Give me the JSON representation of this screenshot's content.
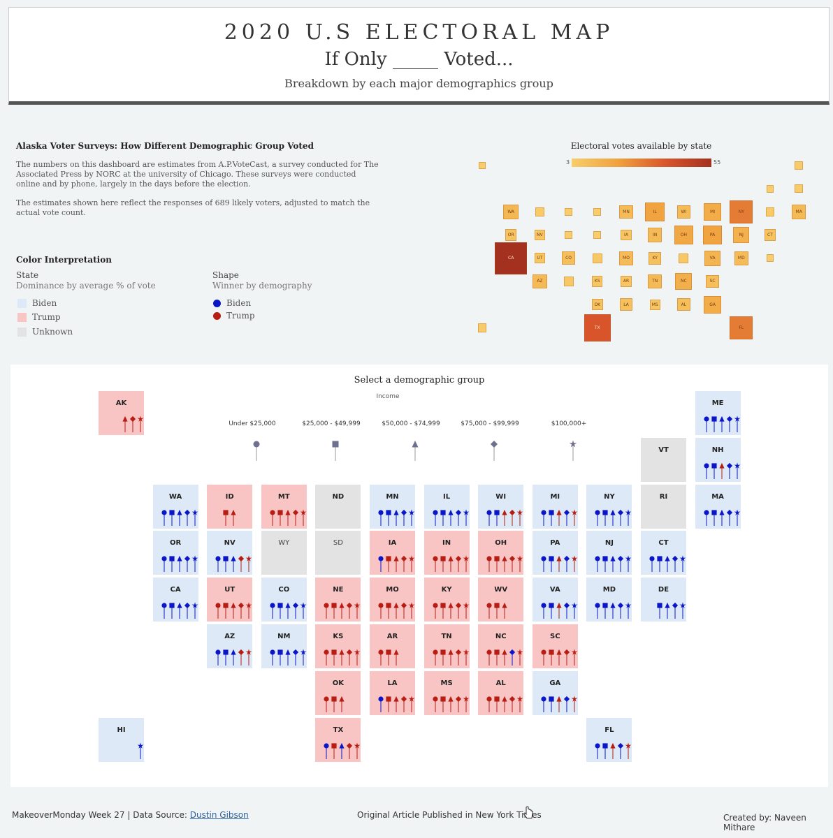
{
  "header": {
    "title": "2020   U.S   ELECTORAL   MAP",
    "subtitle": "If Only _____ Voted...",
    "tagline": "Breakdown by each major demographics group"
  },
  "survey": {
    "title": "Alaska Voter Surveys: How Different Demographic Group Voted",
    "p1": "The numbers on this dashboard are estimates from A.P.VoteCast, a survey conducted for The Associated Press by NORC at the university of Chicago. These surveys were conducted online and by phone, largely in the days before the election.",
    "p2": "The estimates shown here reflect the responses of 689 likely voters, adjusted to match the actual vote count."
  },
  "legend": {
    "title": "Color Interpretation",
    "state_head": "State",
    "state_sub": "Dominance by average % of vote",
    "state_items": [
      {
        "label": "Biden",
        "color": "#dde9f7"
      },
      {
        "label": "Trump",
        "color": "#f9c4c4"
      },
      {
        "label": "Unknown",
        "color": "#e3e3e3"
      }
    ],
    "shape_head": "Shape",
    "shape_sub": "Winner by demography",
    "shape_items": [
      {
        "label": "Biden",
        "color": "#0b16c8"
      },
      {
        "label": "Trump",
        "color": "#b81d13"
      }
    ]
  },
  "ev_map": {
    "title": "Electoral votes available by state",
    "min_label": "3",
    "max_label": "55",
    "states": [
      {
        "st": "AK",
        "ev": 3
      },
      {
        "st": "ME",
        "ev": 4
      },
      {
        "st": "VT",
        "ev": 3
      },
      {
        "st": "NH",
        "ev": 4
      },
      {
        "st": "WA",
        "ev": 12
      },
      {
        "st": "ID",
        "ev": 4
      },
      {
        "st": "MT",
        "ev": 3
      },
      {
        "st": "ND",
        "ev": 3
      },
      {
        "st": "MN",
        "ev": 10
      },
      {
        "st": "IL",
        "ev": 20
      },
      {
        "st": "WI",
        "ev": 10
      },
      {
        "st": "MI",
        "ev": 16
      },
      {
        "st": "NY",
        "ev": 29
      },
      {
        "st": "RI",
        "ev": 4
      },
      {
        "st": "MA",
        "ev": 11
      },
      {
        "st": "OR",
        "ev": 7
      },
      {
        "st": "NV",
        "ev": 6
      },
      {
        "st": "WY",
        "ev": 3
      },
      {
        "st": "SD",
        "ev": 3
      },
      {
        "st": "IA",
        "ev": 6
      },
      {
        "st": "IN",
        "ev": 11
      },
      {
        "st": "OH",
        "ev": 18
      },
      {
        "st": "PA",
        "ev": 20
      },
      {
        "st": "NJ",
        "ev": 14
      },
      {
        "st": "CT",
        "ev": 7
      },
      {
        "st": "CA",
        "ev": 55
      },
      {
        "st": "UT",
        "ev": 6
      },
      {
        "st": "CO",
        "ev": 9
      },
      {
        "st": "NE",
        "ev": 5
      },
      {
        "st": "MO",
        "ev": 10
      },
      {
        "st": "KY",
        "ev": 8
      },
      {
        "st": "WV",
        "ev": 5
      },
      {
        "st": "VA",
        "ev": 13
      },
      {
        "st": "MD",
        "ev": 10
      },
      {
        "st": "DE",
        "ev": 3
      },
      {
        "st": "AZ",
        "ev": 11
      },
      {
        "st": "NM",
        "ev": 5
      },
      {
        "st": "KS",
        "ev": 6
      },
      {
        "st": "AR",
        "ev": 6
      },
      {
        "st": "TN",
        "ev": 11
      },
      {
        "st": "NC",
        "ev": 15
      },
      {
        "st": "SC",
        "ev": 9
      },
      {
        "st": "OK",
        "ev": 7
      },
      {
        "st": "LA",
        "ev": 8
      },
      {
        "st": "MS",
        "ev": 6
      },
      {
        "st": "AL",
        "ev": 9
      },
      {
        "st": "GA",
        "ev": 16
      },
      {
        "st": "HI",
        "ev": 4
      },
      {
        "st": "TX",
        "ev": 38
      },
      {
        "st": "FL",
        "ev": 29
      }
    ]
  },
  "main": {
    "select_title": "Select a demographic group",
    "group_label": "Income",
    "income_categories": [
      "Under $25,000",
      "$25,000 - $49,999",
      "$50,000 - $74,999",
      "$75,000 - $99,999",
      "$100,000+"
    ],
    "income_shapes": [
      "circle",
      "square",
      "triangle",
      "diamond",
      "star"
    ],
    "states": [
      {
        "st": "AK",
        "dom": "trump",
        "w": [
          "",
          "",
          "R",
          "R",
          "R"
        ]
      },
      {
        "st": "ME",
        "dom": "biden",
        "w": [
          "B",
          "B",
          "B",
          "B",
          "B"
        ]
      },
      {
        "st": "VT",
        "dom": "unknown",
        "w": [
          "",
          "",
          "",
          "",
          ""
        ]
      },
      {
        "st": "NH",
        "dom": "biden",
        "w": [
          "B",
          "B",
          "R",
          "B",
          "B"
        ]
      },
      {
        "st": "WA",
        "dom": "biden",
        "w": [
          "B",
          "B",
          "B",
          "B",
          "B"
        ]
      },
      {
        "st": "ID",
        "dom": "trump",
        "w": [
          "",
          "R",
          "R",
          "",
          ""
        ]
      },
      {
        "st": "MT",
        "dom": "trump",
        "w": [
          "R",
          "R",
          "R",
          "R",
          "R"
        ]
      },
      {
        "st": "ND",
        "dom": "unknown",
        "w": [
          "",
          "",
          "",
          "",
          ""
        ]
      },
      {
        "st": "MN",
        "dom": "biden",
        "w": [
          "B",
          "B",
          "B",
          "B",
          "B"
        ]
      },
      {
        "st": "IL",
        "dom": "biden",
        "w": [
          "B",
          "B",
          "B",
          "B",
          "B"
        ]
      },
      {
        "st": "WI",
        "dom": "biden",
        "w": [
          "B",
          "B",
          "R",
          "R",
          "R"
        ]
      },
      {
        "st": "MI",
        "dom": "biden",
        "w": [
          "B",
          "B",
          "R",
          "B",
          "R"
        ]
      },
      {
        "st": "NY",
        "dom": "biden",
        "w": [
          "B",
          "B",
          "B",
          "B",
          "B"
        ]
      },
      {
        "st": "RI",
        "dom": "unknown",
        "w": [
          "",
          "",
          "",
          "",
          ""
        ]
      },
      {
        "st": "MA",
        "dom": "biden",
        "w": [
          "B",
          "B",
          "B",
          "B",
          "B"
        ]
      },
      {
        "st": "OR",
        "dom": "biden",
        "w": [
          "B",
          "B",
          "B",
          "B",
          "B"
        ]
      },
      {
        "st": "NV",
        "dom": "biden",
        "w": [
          "B",
          "B",
          "B",
          "R",
          "R"
        ]
      },
      {
        "st": "WY",
        "dom": "unknown",
        "w": [
          "",
          "",
          "",
          "",
          ""
        ]
      },
      {
        "st": "SD",
        "dom": "unknown",
        "w": [
          "",
          "",
          "",
          "",
          ""
        ]
      },
      {
        "st": "IA",
        "dom": "trump",
        "w": [
          "B",
          "R",
          "R",
          "R",
          "R"
        ]
      },
      {
        "st": "IN",
        "dom": "trump",
        "w": [
          "R",
          "R",
          "R",
          "R",
          "R"
        ]
      },
      {
        "st": "OH",
        "dom": "trump",
        "w": [
          "R",
          "R",
          "R",
          "R",
          "R"
        ]
      },
      {
        "st": "PA",
        "dom": "biden",
        "w": [
          "B",
          "B",
          "R",
          "B",
          "R"
        ]
      },
      {
        "st": "NJ",
        "dom": "biden",
        "w": [
          "B",
          "B",
          "B",
          "B",
          "B"
        ]
      },
      {
        "st": "CT",
        "dom": "biden",
        "w": [
          "B",
          "B",
          "B",
          "B",
          "B"
        ]
      },
      {
        "st": "CA",
        "dom": "biden",
        "w": [
          "B",
          "B",
          "B",
          "B",
          "B"
        ]
      },
      {
        "st": "UT",
        "dom": "trump",
        "w": [
          "R",
          "R",
          "R",
          "R",
          "R"
        ]
      },
      {
        "st": "CO",
        "dom": "biden",
        "w": [
          "B",
          "B",
          "B",
          "B",
          "B"
        ]
      },
      {
        "st": "NE",
        "dom": "trump",
        "w": [
          "R",
          "R",
          "R",
          "R",
          "R"
        ]
      },
      {
        "st": "MO",
        "dom": "trump",
        "w": [
          "R",
          "R",
          "R",
          "R",
          "R"
        ]
      },
      {
        "st": "KY",
        "dom": "trump",
        "w": [
          "R",
          "R",
          "R",
          "R",
          "R"
        ]
      },
      {
        "st": "WV",
        "dom": "trump",
        "w": [
          "R",
          "R",
          "R",
          "",
          ""
        ]
      },
      {
        "st": "VA",
        "dom": "biden",
        "w": [
          "B",
          "B",
          "R",
          "B",
          "B"
        ]
      },
      {
        "st": "MD",
        "dom": "biden",
        "w": [
          "B",
          "B",
          "B",
          "B",
          "B"
        ]
      },
      {
        "st": "DE",
        "dom": "biden",
        "w": [
          "",
          "B",
          "B",
          "B",
          "B"
        ]
      },
      {
        "st": "AZ",
        "dom": "biden",
        "w": [
          "B",
          "B",
          "B",
          "R",
          "R"
        ]
      },
      {
        "st": "NM",
        "dom": "biden",
        "w": [
          "B",
          "B",
          "B",
          "B",
          "B"
        ]
      },
      {
        "st": "KS",
        "dom": "trump",
        "w": [
          "R",
          "R",
          "R",
          "R",
          "R"
        ]
      },
      {
        "st": "AR",
        "dom": "trump",
        "w": [
          "R",
          "R",
          "R",
          "",
          ""
        ]
      },
      {
        "st": "TN",
        "dom": "trump",
        "w": [
          "R",
          "R",
          "R",
          "R",
          "R"
        ]
      },
      {
        "st": "NC",
        "dom": "trump",
        "w": [
          "R",
          "R",
          "R",
          "B",
          "R"
        ]
      },
      {
        "st": "SC",
        "dom": "trump",
        "w": [
          "R",
          "R",
          "R",
          "R",
          "R"
        ]
      },
      {
        "st": "OK",
        "dom": "trump",
        "w": [
          "R",
          "R",
          "R",
          "",
          ""
        ]
      },
      {
        "st": "LA",
        "dom": "trump",
        "w": [
          "B",
          "R",
          "R",
          "R",
          "R"
        ]
      },
      {
        "st": "MS",
        "dom": "trump",
        "w": [
          "R",
          "R",
          "R",
          "R",
          "R"
        ]
      },
      {
        "st": "AL",
        "dom": "trump",
        "w": [
          "R",
          "R",
          "R",
          "R",
          "R"
        ]
      },
      {
        "st": "GA",
        "dom": "biden",
        "w": [
          "B",
          "B",
          "R",
          "B",
          "R"
        ]
      },
      {
        "st": "HI",
        "dom": "biden",
        "w": [
          "",
          "",
          "",
          "",
          "B"
        ]
      },
      {
        "st": "TX",
        "dom": "trump",
        "w": [
          "B",
          "R",
          "B",
          "R",
          "R"
        ]
      },
      {
        "st": "FL",
        "dom": "biden",
        "w": [
          "B",
          "B",
          "R",
          "B",
          "R"
        ]
      }
    ]
  },
  "footer": {
    "left": "MakeoverMonday Week 27 | Data Source: ",
    "source": "Dustin Gibson",
    "center": "Original Article Published in New York Times",
    "right": "Created by: Naveen Mithare"
  },
  "colors": {
    "biden_fill": "#dde9f7",
    "trump_fill": "#f9c4c4",
    "unknown_fill": "#e3e3e3",
    "biden_mark": "#0b16c8",
    "trump_mark": "#b81d13",
    "income_mark": "#6f6f8f"
  }
}
